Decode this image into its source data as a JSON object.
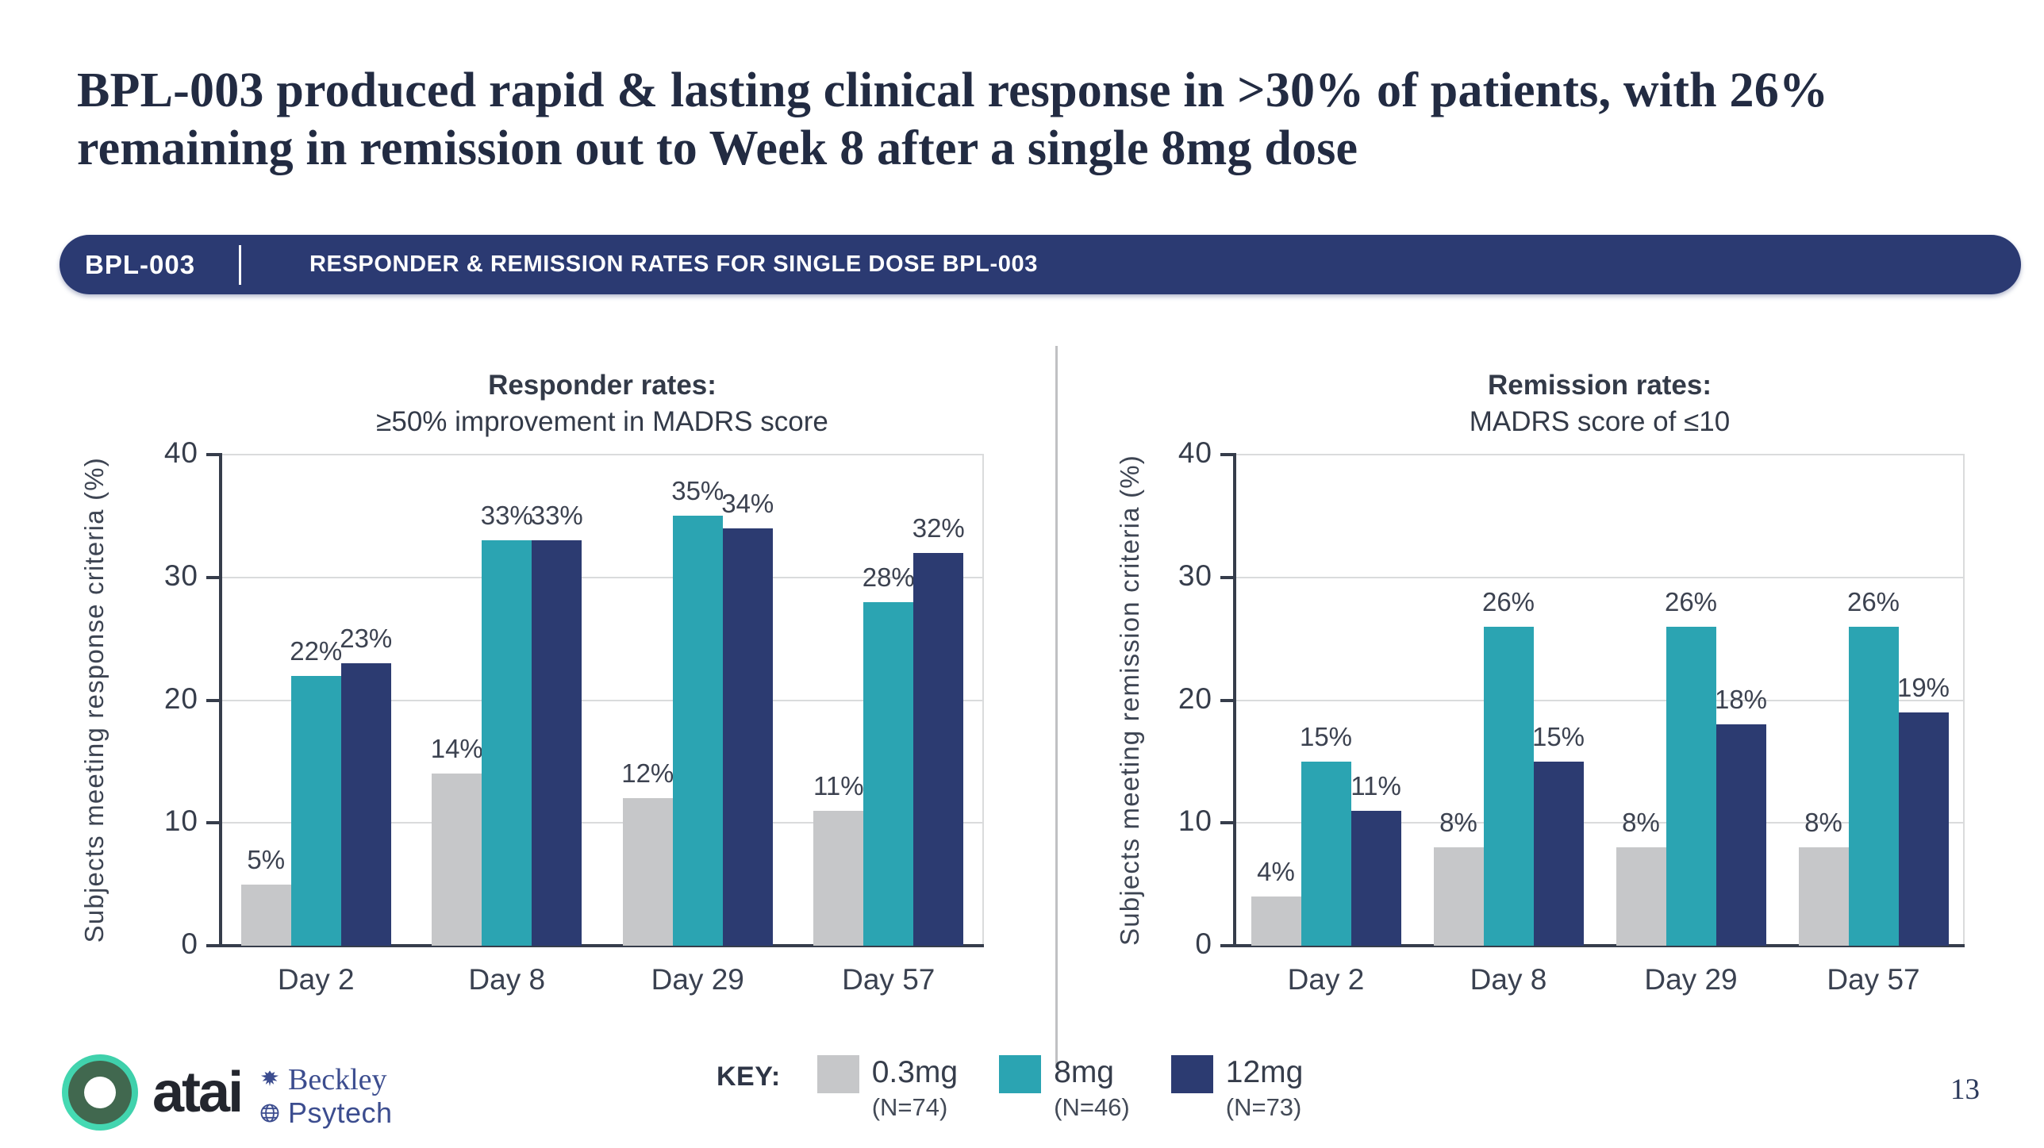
{
  "slide": {
    "title": "BPL-003 produced rapid & lasting clinical response in >30% of patients, with 26% remaining in remission out to Week 8 after a single 8mg dose",
    "page_number": "13"
  },
  "banner": {
    "tag": "BPL-003",
    "heading": "RESPONDER & REMISSION RATES FOR SINGLE DOSE BPL-003",
    "bg_color": "#2b3a72"
  },
  "chart_data": [
    {
      "type": "bar",
      "title": "Responder rates:",
      "subtitle": "≥50% improvement in MADRS score",
      "ylabel": "Subjects meeting response criteria  (%)",
      "ylim": [
        0,
        40
      ],
      "yticks": [
        0,
        10,
        20,
        30,
        40
      ],
      "grid": true,
      "categories": [
        "Day 2",
        "Day 8",
        "Day 29",
        "Day 57"
      ],
      "series": [
        {
          "name": "0.3mg",
          "color": "#c6c7c9",
          "values": [
            5,
            14,
            12,
            11
          ],
          "labels": [
            "5%",
            "14%",
            "12%",
            "11%"
          ]
        },
        {
          "name": "8mg",
          "color": "#2ba4b2",
          "values": [
            22,
            33,
            35,
            28
          ],
          "labels": [
            "22%",
            "33%",
            "35%",
            "28%"
          ]
        },
        {
          "name": "12mg",
          "color": "#2c3b71",
          "values": [
            23,
            33,
            34,
            32
          ],
          "labels": [
            "23%",
            "33%",
            "34%",
            "32%"
          ]
        }
      ]
    },
    {
      "type": "bar",
      "title": "Remission rates:",
      "subtitle": "MADRS score of ≤10",
      "ylabel": "Subjects meeting remission criteria  (%)",
      "ylim": [
        0,
        40
      ],
      "yticks": [
        0,
        10,
        20,
        30,
        40
      ],
      "grid": true,
      "categories": [
        "Day 2",
        "Day 8",
        "Day 29",
        "Day 57"
      ],
      "series": [
        {
          "name": "0.3mg",
          "color": "#c6c7c9",
          "values": [
            4,
            8,
            8,
            8
          ],
          "labels": [
            "4%",
            "8%",
            "8%",
            "8%"
          ]
        },
        {
          "name": "8mg",
          "color": "#2ba4b2",
          "values": [
            15,
            26,
            26,
            26
          ],
          "labels": [
            "15%",
            "26%",
            "26%",
            "26%"
          ]
        },
        {
          "name": "12mg",
          "color": "#2c3b71",
          "values": [
            11,
            15,
            18,
            19
          ],
          "labels": [
            "11%",
            "15%",
            "18%",
            "19%"
          ]
        }
      ]
    }
  ],
  "legend": {
    "key_label": "KEY:",
    "items": [
      {
        "label": "0.3mg",
        "n": "(N=74)",
        "color": "#c6c7c9"
      },
      {
        "label": "8mg",
        "n": "(N=46)",
        "color": "#2ba4b2"
      },
      {
        "label": "12mg",
        "n": "(N=73)",
        "color": "#2c3b71"
      }
    ]
  },
  "logos": {
    "atai_text": "atai",
    "beckley_line1": "Beckley",
    "beckley_line2": "Psytech"
  }
}
